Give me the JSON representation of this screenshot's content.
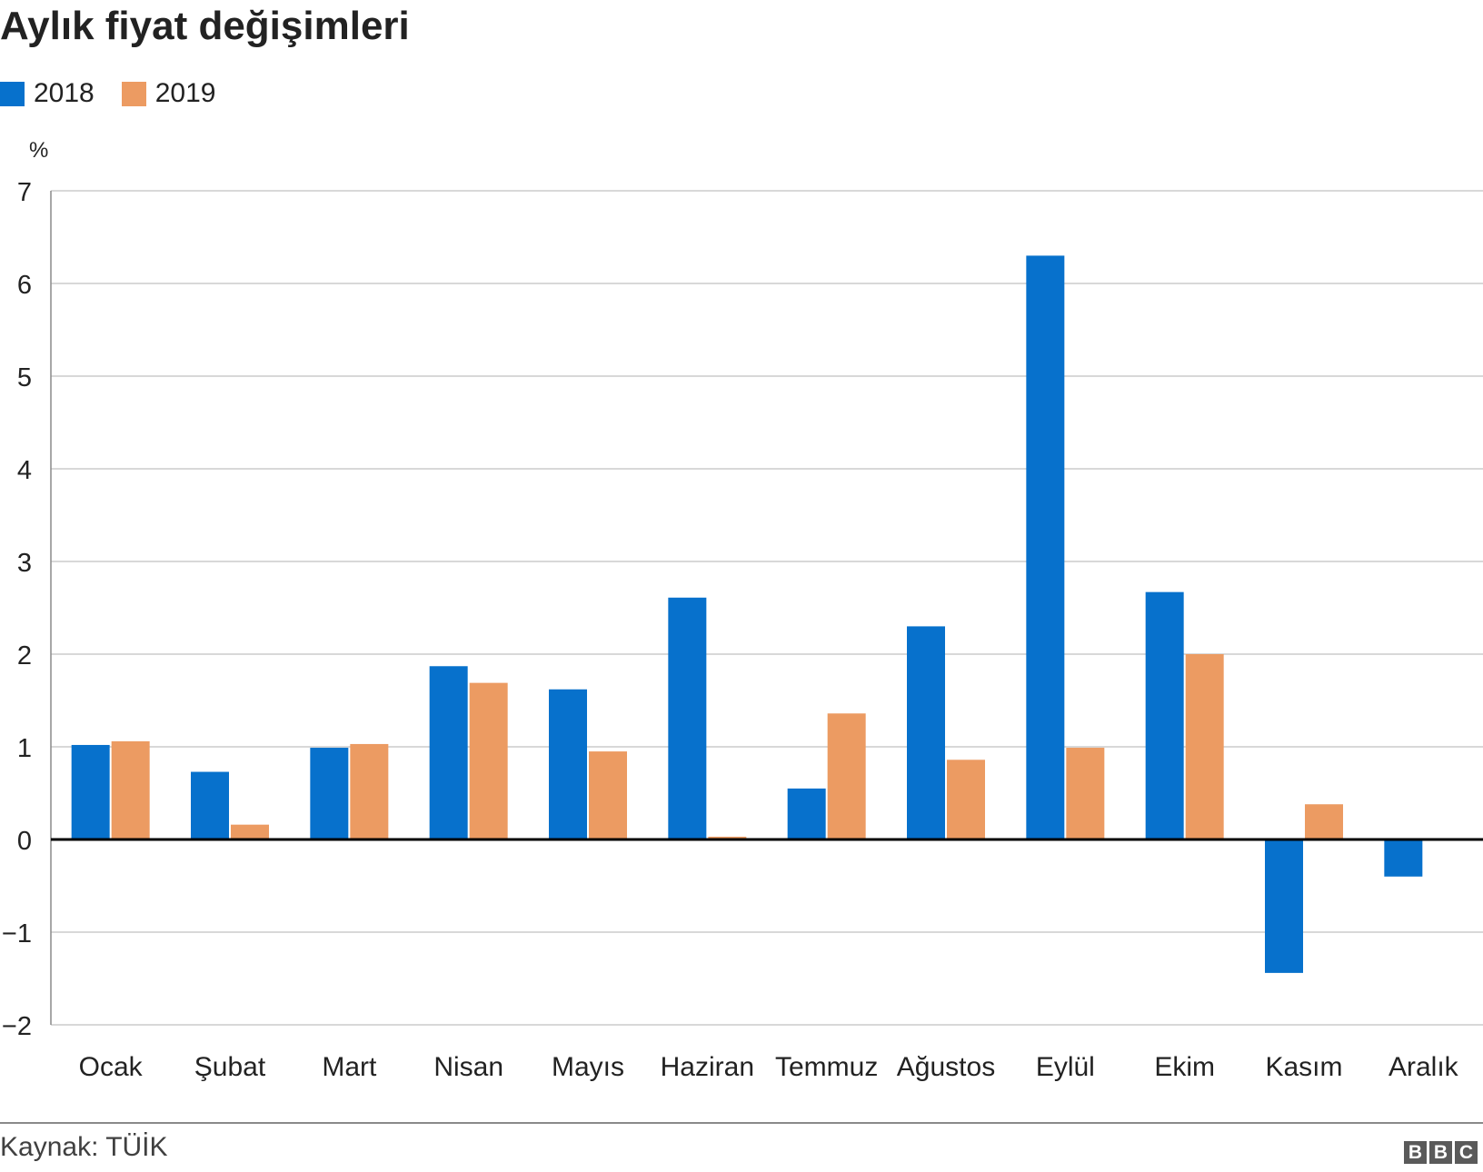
{
  "colors": {
    "series_2018": "#0771cc",
    "series_2019": "#ec9b62",
    "grid": "#cccccc",
    "zero": "#000000",
    "axis": "#8a8a8a"
  },
  "source_text": "Kaynak: TÜİK",
  "logo_letters": [
    "B",
    "B",
    "C"
  ],
  "chart_data": {
    "type": "bar",
    "title": "Aylık fiyat değişimleri",
    "ylabel": "%",
    "xlabel": "",
    "ylim": [
      -2,
      7
    ],
    "yticks": [
      7,
      6,
      5,
      4,
      3,
      2,
      1,
      0,
      -1,
      -2
    ],
    "ytick_labels": [
      "7",
      "6",
      "5",
      "4",
      "3",
      "2",
      "1",
      "0",
      "−1",
      "−2"
    ],
    "grid": true,
    "legend_position": "top-left",
    "categories": [
      "Ocak",
      "Şubat",
      "Mart",
      "Nisan",
      "Mayıs",
      "Haziran",
      "Temmuz",
      "Ağustos",
      "Eylül",
      "Ekim",
      "Kasım",
      "Aralık"
    ],
    "series": [
      {
        "name": "2018",
        "values": [
          1.02,
          0.73,
          0.99,
          1.87,
          1.62,
          2.61,
          0.55,
          2.3,
          6.3,
          2.67,
          -1.44,
          -0.4
        ]
      },
      {
        "name": "2019",
        "values": [
          1.06,
          0.16,
          1.03,
          1.69,
          0.95,
          0.03,
          1.36,
          0.86,
          0.99,
          2.0,
          0.38,
          null
        ]
      }
    ]
  }
}
